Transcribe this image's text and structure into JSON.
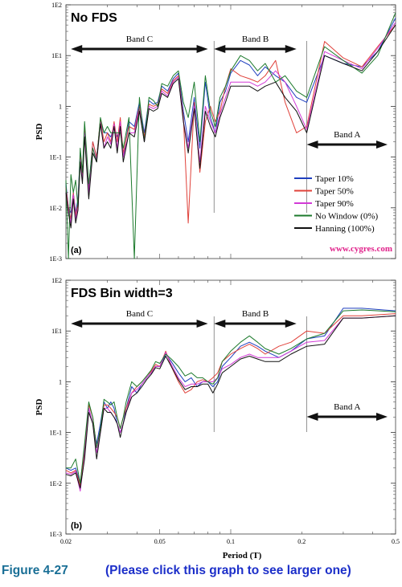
{
  "caption": {
    "figure_label": "Figure 4-27",
    "link_text": "(Please click this graph to see larger one)"
  },
  "watermark": "www.cygres.com",
  "xlabel": "Period (T)",
  "ylabel": "PSD",
  "series_styles": [
    {
      "name": "Taper  10%",
      "color": "#1f3fbf"
    },
    {
      "name": "Taper  50%",
      "color": "#e0413a"
    },
    {
      "name": "Taper  90%",
      "color": "#d23ad6"
    },
    {
      "name": "No Window (0%)",
      "color": "#1c7a2c"
    },
    {
      "name": "Hanning  (100%)",
      "color": "#111111"
    }
  ],
  "chart_data": [
    {
      "type": "line",
      "title": "No FDS",
      "panel_letter": "(a)",
      "xlabel": "",
      "ylabel": "PSD",
      "x_scale": "log",
      "y_scale": "log",
      "xlim": [
        0.02,
        0.5
      ],
      "ylim": [
        0.001,
        100
      ],
      "x_ticks": [],
      "x_tick_labels": [],
      "y_ticks": [
        0.001,
        0.01,
        0.1,
        1,
        10,
        100
      ],
      "y_tick_labels": [
        "1E-3",
        "1E-2",
        "1E-1",
        "1",
        "1E1",
        "1E2"
      ],
      "bands": [
        {
          "label": "Band C",
          "from": 0.021,
          "to": 0.08
        },
        {
          "label": "Band B",
          "from": 0.085,
          "to": 0.19
        },
        {
          "label": "Band A",
          "from": 0.21,
          "to": 0.5
        }
      ],
      "band_dividers": [
        0.085,
        0.21
      ],
      "legend": {
        "position": "lower-right",
        "entries": [
          "Taper  10%",
          "Taper  50%",
          "Taper  90%",
          "No Window (0%)",
          "Hanning  (100%)"
        ]
      },
      "x": [
        0.02,
        0.0205,
        0.021,
        0.0215,
        0.022,
        0.0225,
        0.023,
        0.0235,
        0.024,
        0.025,
        0.026,
        0.027,
        0.028,
        0.029,
        0.03,
        0.031,
        0.032,
        0.033,
        0.034,
        0.035,
        0.037,
        0.039,
        0.041,
        0.043,
        0.045,
        0.047,
        0.049,
        0.051,
        0.054,
        0.057,
        0.06,
        0.063,
        0.066,
        0.07,
        0.074,
        0.078,
        0.082,
        0.086,
        0.09,
        0.095,
        0.1,
        0.11,
        0.12,
        0.13,
        0.14,
        0.155,
        0.17,
        0.19,
        0.21,
        0.25,
        0.3,
        0.36,
        0.42,
        0.5
      ],
      "series": [
        {
          "name": "Taper  10%",
          "values": [
            0.03,
            0.01,
            0.008,
            0.02,
            0.008,
            0.015,
            0.12,
            0.04,
            0.4,
            0.025,
            0.2,
            0.1,
            0.5,
            0.3,
            0.3,
            0.25,
            0.4,
            0.25,
            0.4,
            0.1,
            0.5,
            0.4,
            1.2,
            0.3,
            1.3,
            1.1,
            1.2,
            2.5,
            2.0,
            3.5,
            4.5,
            0.8,
            0.2,
            1.5,
            0.15,
            3.0,
            0.6,
            0.3,
            1.2,
            2.0,
            4.5,
            8.0,
            6.5,
            4.0,
            6.0,
            4.0,
            3.0,
            1.5,
            1.2,
            10.0,
            7.0,
            6.0,
            12.0,
            55.0
          ]
        },
        {
          "name": "Taper  50%",
          "values": [
            0.025,
            0.01,
            0.006,
            0.02,
            0.007,
            0.012,
            0.1,
            0.04,
            0.35,
            0.02,
            0.2,
            0.1,
            0.55,
            0.2,
            0.3,
            0.2,
            0.5,
            0.2,
            0.6,
            0.12,
            0.4,
            0.35,
            1.0,
            0.25,
            1.1,
            1.0,
            1.1,
            2.2,
            1.8,
            3.2,
            4.0,
            0.6,
            0.005,
            1.2,
            0.05,
            0.5,
            1.0,
            0.5,
            0.8,
            2.5,
            5.5,
            4.0,
            3.5,
            3.0,
            4.0,
            8.0,
            1.2,
            0.3,
            0.4,
            19.0,
            9.0,
            6.0,
            15.0,
            40.0
          ]
        },
        {
          "name": "Taper  90%",
          "values": [
            0.02,
            0.009,
            0.005,
            0.018,
            0.006,
            0.01,
            0.09,
            0.035,
            0.3,
            0.02,
            0.15,
            0.09,
            0.5,
            0.15,
            0.25,
            0.18,
            0.45,
            0.15,
            0.5,
            0.1,
            0.3,
            0.3,
            0.9,
            0.2,
            1.0,
            0.9,
            1.0,
            2.0,
            1.6,
            3.0,
            3.8,
            0.5,
            0.15,
            1.0,
            0.08,
            1.0,
            0.5,
            0.3,
            0.7,
            1.5,
            3.0,
            3.0,
            3.0,
            2.5,
            3.0,
            5.0,
            3.0,
            1.0,
            0.35,
            12.0,
            8.0,
            5.5,
            14.0,
            45.0
          ]
        },
        {
          "name": "No Window (0%)",
          "values": [
            0.035,
            0.001,
            0.045,
            0.02,
            0.035,
            0.01,
            0.15,
            0.05,
            0.5,
            0.03,
            0.15,
            0.08,
            0.6,
            0.3,
            0.4,
            0.3,
            0.3,
            0.3,
            0.3,
            0.15,
            0.6,
            0.001,
            1.5,
            0.2,
            1.5,
            1.3,
            1.0,
            2.8,
            2.5,
            4.0,
            5.0,
            1.2,
            0.6,
            3.0,
            0.2,
            4.0,
            0.8,
            0.4,
            1.5,
            2.5,
            5.0,
            10.0,
            8.0,
            5.0,
            7.0,
            3.0,
            4.0,
            2.0,
            1.5,
            15.0,
            8.0,
            4.5,
            10.0,
            70.0
          ]
        },
        {
          "name": "Hanning  (100%)",
          "values": [
            0.02,
            0.008,
            0.004,
            0.015,
            0.005,
            0.009,
            0.08,
            0.03,
            0.25,
            0.015,
            0.12,
            0.08,
            0.45,
            0.15,
            0.2,
            0.15,
            0.4,
            0.12,
            0.4,
            0.08,
            0.3,
            0.25,
            0.8,
            0.2,
            0.9,
            0.8,
            0.9,
            1.8,
            1.5,
            2.8,
            3.5,
            0.5,
            0.12,
            0.9,
            0.06,
            0.8,
            0.4,
            0.25,
            0.6,
            1.2,
            2.5,
            2.5,
            2.5,
            2.0,
            2.5,
            3.0,
            1.5,
            0.8,
            0.3,
            10.0,
            7.0,
            5.0,
            12.0,
            40.0
          ]
        }
      ]
    },
    {
      "type": "line",
      "title": "FDS Bin width=3",
      "panel_letter": "(b)",
      "xlabel": "Period (T)",
      "ylabel": "PSD",
      "x_scale": "log",
      "y_scale": "log",
      "xlim": [
        0.02,
        0.5
      ],
      "ylim": [
        0.001,
        100
      ],
      "x_ticks": [
        0.02,
        0.05,
        0.1,
        0.2,
        0.5
      ],
      "x_tick_labels": [
        "0.02",
        "0.05",
        "0.1",
        "0.2",
        "0.5"
      ],
      "y_ticks": [
        0.001,
        0.01,
        0.1,
        1,
        10,
        100
      ],
      "y_tick_labels": [
        "1E-3",
        "1E-2",
        "1E-1",
        "1",
        "1E1",
        "1E2"
      ],
      "bands": [
        {
          "label": "Band C",
          "from": 0.021,
          "to": 0.08
        },
        {
          "label": "Band B",
          "from": 0.085,
          "to": 0.19
        },
        {
          "label": "Band A",
          "from": 0.21,
          "to": 0.5
        }
      ],
      "band_dividers": [
        0.085,
        0.21
      ],
      "x": [
        0.02,
        0.021,
        0.022,
        0.023,
        0.024,
        0.025,
        0.026,
        0.027,
        0.028,
        0.029,
        0.03,
        0.031,
        0.032,
        0.033,
        0.034,
        0.035,
        0.036,
        0.038,
        0.04,
        0.042,
        0.044,
        0.046,
        0.048,
        0.05,
        0.053,
        0.056,
        0.06,
        0.064,
        0.068,
        0.072,
        0.076,
        0.08,
        0.084,
        0.088,
        0.092,
        0.1,
        0.11,
        0.12,
        0.13,
        0.14,
        0.16,
        0.18,
        0.21,
        0.25,
        0.3,
        0.36,
        0.5
      ],
      "series": [
        {
          "name": "Taper  10%",
          "values": [
            0.02,
            0.018,
            0.02,
            0.01,
            0.05,
            0.3,
            0.15,
            0.06,
            0.15,
            0.4,
            0.3,
            0.4,
            0.3,
            0.15,
            0.1,
            0.15,
            0.3,
            0.8,
            0.6,
            0.9,
            1.2,
            1.5,
            2.0,
            2.0,
            3.5,
            2.5,
            1.5,
            1.0,
            1.2,
            0.8,
            1.0,
            1.0,
            0.8,
            1.0,
            2.0,
            3.0,
            5.0,
            6.0,
            5.0,
            4.0,
            3.0,
            4.0,
            7.0,
            8.0,
            28.0,
            28.0,
            25.0
          ]
        },
        {
          "name": "Taper  50%",
          "values": [
            0.018,
            0.016,
            0.018,
            0.009,
            0.04,
            0.35,
            0.2,
            0.05,
            0.12,
            0.35,
            0.35,
            0.3,
            0.25,
            0.2,
            0.12,
            0.2,
            0.3,
            0.6,
            0.8,
            1.0,
            1.3,
            1.6,
            2.2,
            2.0,
            4.0,
            2.0,
            1.0,
            0.6,
            0.7,
            1.0,
            1.1,
            1.0,
            1.2,
            1.5,
            2.5,
            3.5,
            4.5,
            5.5,
            4.5,
            3.5,
            5.0,
            6.0,
            10.0,
            9.0,
            20.0,
            20.0,
            22.0
          ]
        },
        {
          "name": "Taper  90%",
          "values": [
            0.016,
            0.015,
            0.017,
            0.007,
            0.035,
            0.3,
            0.15,
            0.04,
            0.1,
            0.3,
            0.3,
            0.25,
            0.2,
            0.15,
            0.1,
            0.15,
            0.25,
            0.6,
            0.7,
            0.9,
            1.2,
            1.5,
            2.0,
            2.0,
            3.8,
            2.2,
            1.2,
            0.8,
            0.9,
            0.9,
            1.0,
            1.0,
            1.0,
            1.2,
            1.8,
            2.2,
            3.0,
            3.5,
            3.0,
            3.0,
            3.0,
            4.0,
            6.0,
            6.5,
            18.0,
            18.0,
            20.0
          ]
        },
        {
          "name": "No Window (0%)",
          "values": [
            0.02,
            0.02,
            0.03,
            0.01,
            0.06,
            0.4,
            0.2,
            0.05,
            0.12,
            0.45,
            0.4,
            0.35,
            0.4,
            0.2,
            0.12,
            0.2,
            0.4,
            1.0,
            0.8,
            1.0,
            1.3,
            1.7,
            2.5,
            2.3,
            3.5,
            2.8,
            2.0,
            1.3,
            1.5,
            1.2,
            1.2,
            1.0,
            0.9,
            1.2,
            2.5,
            4.0,
            6.0,
            8.0,
            6.0,
            4.5,
            3.5,
            4.5,
            7.0,
            9.0,
            25.0,
            26.0,
            24.0
          ]
        },
        {
          "name": "Hanning  (100%)",
          "values": [
            0.015,
            0.014,
            0.016,
            0.008,
            0.03,
            0.25,
            0.15,
            0.03,
            0.1,
            0.3,
            0.25,
            0.25,
            0.2,
            0.15,
            0.08,
            0.15,
            0.25,
            0.5,
            0.6,
            0.8,
            1.1,
            1.4,
            1.9,
            1.8,
            3.2,
            2.0,
            1.1,
            0.7,
            0.8,
            0.8,
            0.9,
            0.9,
            0.6,
            0.9,
            1.5,
            2.0,
            2.8,
            3.2,
            2.8,
            2.5,
            2.5,
            3.5,
            5.0,
            5.5,
            18.0,
            18.0,
            20.0
          ]
        }
      ]
    }
  ]
}
